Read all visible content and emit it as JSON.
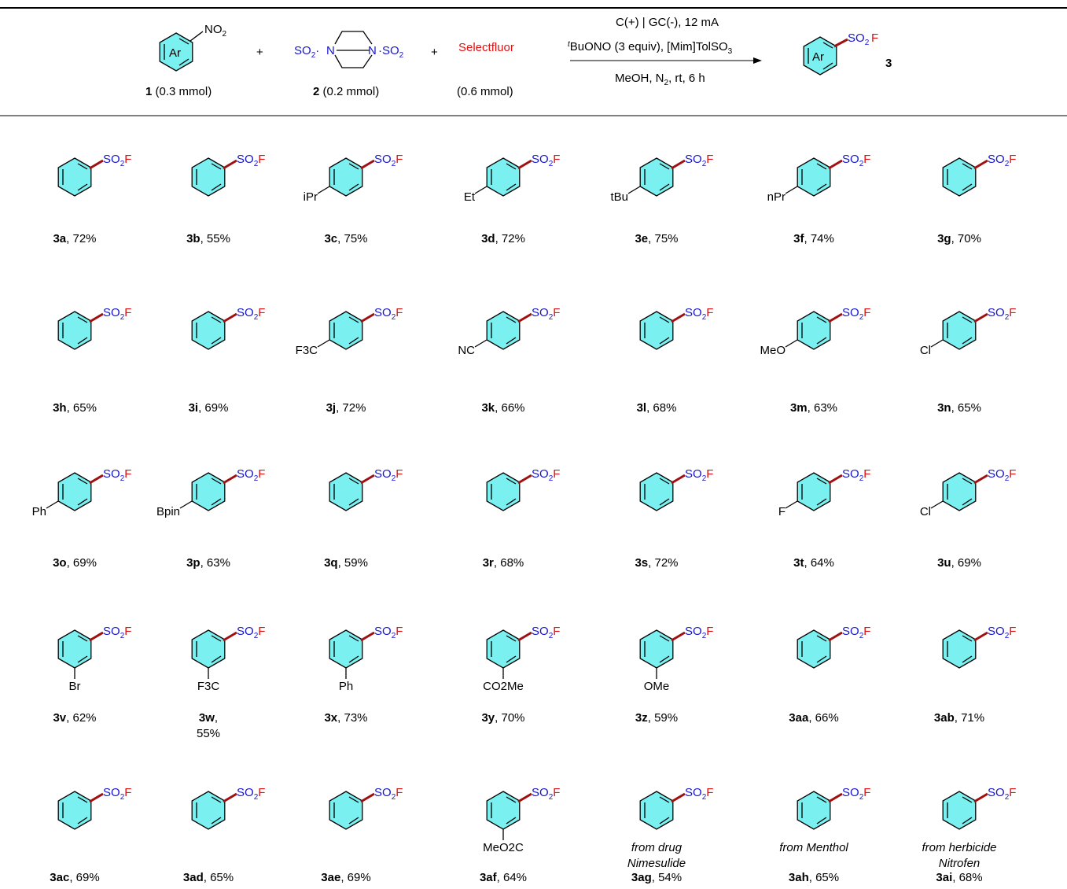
{
  "header": {
    "reagent1_atom": "Ar",
    "reagent1_group": "NO2",
    "reagent1_label": "1",
    "reagent1_amount": "(0.3 mmol)",
    "reagent2_label": "2",
    "reagent2_amount": "(0.2 mmol)",
    "reagent3_name": "Selectfluor",
    "reagent3_amount": "(0.6 mmol)",
    "plus": "+",
    "cond_line1": "C(+) | GC(-), 12 mA",
    "cond_line2": "BuONO (3 equiv), [Mim]TolSO3",
    "cond_line2_sup": "t",
    "cond_line3": "MeOH, N2, rt, 6 h",
    "product_label": "3",
    "product_group": "SO2F"
  },
  "products": [
    {
      "id": "3a",
      "yield": ", 72%"
    },
    {
      "id": "3b",
      "yield": ", 55%"
    },
    {
      "id": "3c",
      "yield": ", 75%",
      "sub": "iPr"
    },
    {
      "id": "3d",
      "yield": ", 72%",
      "sub": "Et"
    },
    {
      "id": "3e",
      "yield": ", 75%",
      "sub": "tBu"
    },
    {
      "id": "3f",
      "yield": ", 74%",
      "sub": "nPr"
    },
    {
      "id": "3g",
      "yield": ", 70%"
    },
    {
      "id": "3h",
      "yield": ", 65%"
    },
    {
      "id": "3i",
      "yield": ", 69%"
    },
    {
      "id": "3j",
      "yield": ", 72%",
      "sub": "F3C"
    },
    {
      "id": "3k",
      "yield": ", 66%",
      "sub": "NC"
    },
    {
      "id": "3l",
      "yield": ", 68%"
    },
    {
      "id": "3m",
      "yield": ", 63%",
      "sub": "MeO"
    },
    {
      "id": "3n",
      "yield": ", 65%",
      "sub": "Cl"
    },
    {
      "id": "3o",
      "yield": ", 69%",
      "sub": "Ph"
    },
    {
      "id": "3p",
      "yield": ", 63%",
      "sub": "Bpin"
    },
    {
      "id": "3q",
      "yield": ", 59%"
    },
    {
      "id": "3r",
      "yield": ", 68%"
    },
    {
      "id": "3s",
      "yield": ", 72%"
    },
    {
      "id": "3t",
      "yield": ", 64%",
      "sub": "F"
    },
    {
      "id": "3u",
      "yield": ", 69%",
      "sub": "Cl"
    },
    {
      "id": "3v",
      "yield": ", 62%",
      "sub": "Br"
    },
    {
      "id": "3w",
      "yield": "55%",
      "sub": "F3C"
    },
    {
      "id": "3x",
      "yield": ", 73%",
      "sub": "Ph"
    },
    {
      "id": "3y",
      "yield": ", 70%",
      "sub": "CO2Me"
    },
    {
      "id": "3z",
      "yield": ", 59%",
      "sub": "OMe"
    },
    {
      "id": "3aa",
      "yield": ", 66%"
    },
    {
      "id": "3ab",
      "yield": ", 71%"
    },
    {
      "id": "3ac",
      "yield": ", 69%"
    },
    {
      "id": "3ad",
      "yield": ", 65%"
    },
    {
      "id": "3ae",
      "yield": ", 69%"
    },
    {
      "id": "3af",
      "yield": ", 64%",
      "sub": "MeO2C"
    },
    {
      "id": "3ag",
      "yield": ", 54%",
      "note1": "from drug",
      "note2": "Nimesulide"
    },
    {
      "id": "3ah",
      "yield": ", 65%",
      "note1": "from Menthol"
    },
    {
      "id": "3ai",
      "yield": ", 68%",
      "note1": "from herbicide",
      "note2": "Nitrofen"
    }
  ]
}
